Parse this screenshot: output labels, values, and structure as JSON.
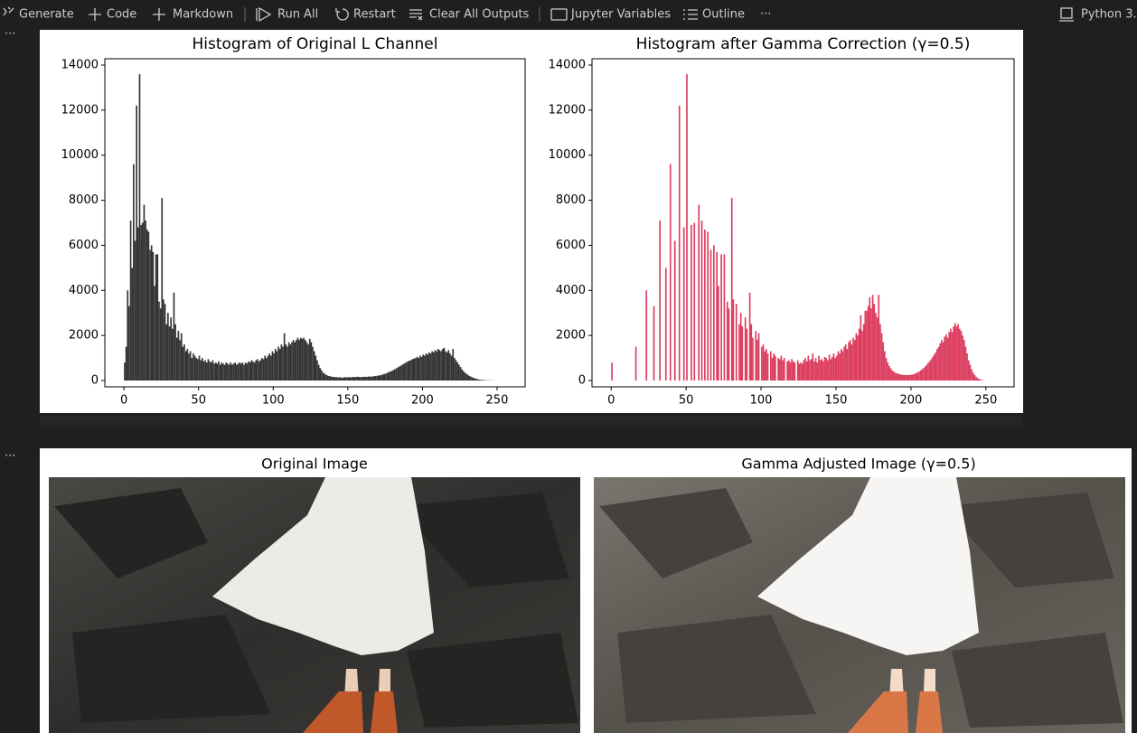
{
  "toolbar": {
    "items": [
      "Generate",
      "Code",
      "Markdown",
      "Run All",
      "Restart",
      "Clear All Outputs",
      "Jupyter Variables",
      "Outline",
      "···"
    ],
    "kernel": "Python 3."
  },
  "cells": [
    "···",
    "···"
  ],
  "chart_data": [
    {
      "type": "histogram",
      "title": "Histogram of Original L Channel",
      "color": "#333333",
      "bins": [
        0,
        1,
        2,
        3,
        4,
        5,
        6,
        7,
        8,
        9,
        10,
        11,
        12,
        13,
        14,
        15,
        16,
        17,
        18,
        19,
        20,
        21,
        22,
        23,
        24,
        25,
        26,
        27,
        28,
        29,
        30,
        31,
        32,
        33,
        34,
        35,
        36,
        37,
        38,
        39,
        40,
        41,
        42,
        43,
        44,
        45,
        46,
        47,
        48,
        49,
        50,
        51,
        52,
        53,
        54,
        55,
        56,
        57,
        58,
        59,
        60,
        61,
        62,
        63,
        64,
        65,
        66,
        67,
        68,
        69,
        70,
        71,
        72,
        73,
        74,
        75,
        76,
        77,
        78,
        79,
        80,
        81,
        82,
        83,
        84,
        85,
        86,
        87,
        88,
        89,
        90,
        91,
        92,
        93,
        94,
        95,
        96,
        97,
        98,
        99,
        100,
        101,
        102,
        103,
        104,
        105,
        106,
        107,
        108,
        109,
        110,
        111,
        112,
        113,
        114,
        115,
        116,
        117,
        118,
        119,
        120,
        121,
        122,
        123,
        124,
        125,
        126,
        127,
        128,
        129,
        130,
        131,
        132,
        133,
        134,
        135,
        136,
        137,
        138,
        139,
        140,
        141,
        142,
        143,
        144,
        145,
        146,
        147,
        148,
        149,
        150,
        151,
        152,
        153,
        154,
        155,
        156,
        157,
        158,
        159,
        160,
        161,
        162,
        163,
        164,
        165,
        166,
        167,
        168,
        169,
        170,
        171,
        172,
        173,
        174,
        175,
        176,
        177,
        178,
        179,
        180,
        181,
        182,
        183,
        184,
        185,
        186,
        187,
        188,
        189,
        190,
        191,
        192,
        193,
        194,
        195,
        196,
        197,
        198,
        199,
        200,
        201,
        202,
        203,
        204,
        205,
        206,
        207,
        208,
        209,
        210,
        211,
        212,
        213,
        214,
        215,
        216,
        217,
        218,
        219,
        220,
        221,
        222,
        223,
        224,
        225,
        226,
        227,
        228,
        229,
        230,
        231,
        232,
        233,
        234,
        235,
        236,
        237,
        238,
        239,
        240,
        241,
        242,
        243,
        244,
        245,
        246,
        247,
        248,
        249,
        250,
        251,
        252,
        253,
        254,
        255,
        256
      ],
      "values": [
        800,
        1500,
        4000,
        3300,
        7100,
        5000,
        9600,
        6200,
        12200,
        6800,
        13600,
        6900,
        7000,
        7800,
        7100,
        6700,
        6600,
        5800,
        6000,
        5700,
        4200,
        5600,
        5600,
        3500,
        3200,
        8100,
        3600,
        3400,
        2500,
        3000,
        2400,
        2800,
        2300,
        3900,
        2500,
        1900,
        2200,
        1800,
        2100,
        1500,
        1600,
        1300,
        1400,
        1200,
        1300,
        1000,
        1200,
        1100,
        1000,
        950,
        1100,
        900,
        1000,
        850,
        900,
        800,
        950,
        850,
        800,
        900,
        750,
        800,
        750,
        850,
        700,
        800,
        750,
        700,
        800,
        750,
        700,
        800,
        700,
        750,
        800,
        700,
        750,
        800,
        750,
        800,
        700,
        800,
        750,
        850,
        800,
        900,
        850,
        800,
        900,
        950,
        850,
        900,
        1000,
        950,
        1100,
        1000,
        1100,
        1200,
        1100,
        1300,
        1200,
        1400,
        1300,
        1500,
        1400,
        1600,
        1500,
        2100,
        1600,
        1500,
        1700,
        1600,
        1700,
        1800,
        1700,
        1800,
        1900,
        1800,
        1900,
        1850,
        1900,
        1800,
        1700,
        1600,
        1850,
        1700,
        1500,
        1300,
        1100,
        900,
        700,
        550,
        450,
        350,
        300,
        250,
        220,
        200,
        180,
        170,
        160,
        150,
        150,
        140,
        140,
        140,
        130,
        140,
        150,
        140,
        150,
        140,
        150,
        160,
        150,
        160,
        170,
        160,
        150,
        160,
        160,
        170,
        160,
        170,
        180,
        170,
        180,
        190,
        200,
        210,
        220,
        230,
        250,
        270,
        290,
        310,
        340,
        370,
        400,
        430,
        460,
        500,
        540,
        580,
        620,
        660,
        700,
        740,
        780,
        820,
        860,
        880,
        920,
        950,
        980,
        1000,
        1050,
        1000,
        1100,
        1050,
        1150,
        1100,
        1200,
        1150,
        1250,
        1200,
        1300,
        1250,
        1350,
        1300,
        1400,
        1350,
        1300,
        1400,
        1450,
        1300,
        1250,
        1350,
        1200,
        1100,
        1400,
        1000,
        900,
        800,
        700,
        600,
        500,
        420,
        350,
        300,
        250,
        200,
        170,
        140,
        110,
        90,
        70,
        50,
        40,
        30,
        25,
        20,
        15,
        10,
        8,
        6,
        4,
        3,
        2,
        1,
        0,
        0,
        0,
        0,
        0,
        0
      ],
      "xlim": [
        -12.8,
        268.8
      ],
      "xticks": [
        0,
        50,
        100,
        150,
        200,
        250
      ],
      "ylim": [
        -280,
        14280
      ],
      "yticks": [
        0,
        2000,
        4000,
        6000,
        8000,
        10000,
        12000,
        14000
      ]
    },
    {
      "type": "histogram",
      "title": "Histogram after Gamma Correction (γ=0.5)",
      "color": "#dc3d5e",
      "bins": [
        0,
        1,
        2,
        3,
        4,
        5,
        6,
        7,
        8,
        9,
        10,
        11,
        12,
        13,
        14,
        15,
        16,
        17,
        18,
        19,
        20,
        21,
        22,
        23,
        24,
        25,
        26,
        27,
        28,
        29,
        30,
        31,
        32,
        33,
        34,
        35,
        36,
        37,
        38,
        39,
        40,
        41,
        42,
        43,
        44,
        45,
        46,
        47,
        48,
        49,
        50,
        51,
        52,
        53,
        54,
        55,
        56,
        57,
        58,
        59,
        60,
        61,
        62,
        63,
        64,
        65,
        66,
        67,
        68,
        69,
        70,
        71,
        72,
        73,
        74,
        75,
        76,
        77,
        78,
        79,
        80,
        81,
        82,
        83,
        84,
        85,
        86,
        87,
        88,
        89,
        90,
        91,
        92,
        93,
        94,
        95,
        96,
        97,
        98,
        99,
        100,
        101,
        102,
        103,
        104,
        105,
        106,
        107,
        108,
        109,
        110,
        111,
        112,
        113,
        114,
        115,
        116,
        117,
        118,
        119,
        120,
        121,
        122,
        123,
        124,
        125,
        126,
        127,
        128,
        129,
        130,
        131,
        132,
        133,
        134,
        135,
        136,
        137,
        138,
        139,
        140,
        141,
        142,
        143,
        144,
        145,
        146,
        147,
        148,
        149,
        150,
        151,
        152,
        153,
        154,
        155,
        156,
        157,
        158,
        159,
        160,
        161,
        162,
        163,
        164,
        165,
        166,
        167,
        168,
        169,
        170,
        171,
        172,
        173,
        174,
        175,
        176,
        177,
        178,
        179,
        180,
        181,
        182,
        183,
        184,
        185,
        186,
        187,
        188,
        189,
        190,
        191,
        192,
        193,
        194,
        195,
        196,
        197,
        198,
        199,
        200,
        201,
        202,
        203,
        204,
        205,
        206,
        207,
        208,
        209,
        210,
        211,
        212,
        213,
        214,
        215,
        216,
        217,
        218,
        219,
        220,
        221,
        222,
        223,
        224,
        225,
        226,
        227,
        228,
        229,
        230,
        231,
        232,
        233,
        234,
        235,
        236,
        237,
        238,
        239,
        240,
        241,
        242,
        243,
        244,
        245,
        246,
        247,
        248,
        249,
        250,
        251,
        252,
        253,
        254,
        255,
        256
      ],
      "values": [
        800,
        0,
        0,
        0,
        0,
        0,
        0,
        0,
        0,
        0,
        0,
        0,
        0,
        0,
        0,
        0,
        1500,
        0,
        0,
        0,
        0,
        0,
        0,
        4000,
        0,
        0,
        0,
        0,
        3300,
        0,
        0,
        0,
        7100,
        0,
        0,
        0,
        5000,
        0,
        0,
        9600,
        0,
        0,
        6200,
        0,
        0,
        12200,
        0,
        0,
        6800,
        0,
        13600,
        0,
        0,
        6900,
        0,
        7000,
        0,
        0,
        7800,
        0,
        7100,
        0,
        6700,
        0,
        6600,
        0,
        5800,
        0,
        6000,
        0,
        5700,
        4200,
        0,
        5600,
        0,
        5600,
        0,
        3500,
        3200,
        0,
        8100,
        3600,
        0,
        3400,
        0,
        2500,
        3000,
        2400,
        0,
        2800,
        2300,
        0,
        3900,
        2500,
        1900,
        0,
        2200,
        1800,
        2100,
        0,
        1500,
        1600,
        1300,
        1400,
        1200,
        0,
        1300,
        1000,
        1200,
        1100,
        0,
        1000,
        950,
        1100,
        900,
        1000,
        0,
        850,
        900,
        800,
        950,
        850,
        800,
        0,
        900,
        750,
        800,
        750,
        900,
        1000,
        850,
        1100,
        900,
        950,
        1200,
        850,
        1000,
        800,
        1100,
        900,
        950,
        850,
        1050,
        1000,
        900,
        1150,
        950,
        1050,
        1200,
        1000,
        1100,
        1300,
        1200,
        1400,
        1300,
        1500,
        1600,
        1400,
        1700,
        1800,
        1600,
        1900,
        1800,
        2100,
        2000,
        2300,
        2900,
        2200,
        2500,
        3100,
        3100,
        3300,
        3700,
        3200,
        3800,
        3400,
        3000,
        2800,
        3800,
        2500,
        2100,
        1700,
        1300,
        1000,
        800,
        650,
        550,
        450,
        400,
        350,
        320,
        300,
        280,
        260,
        250,
        250,
        240,
        250,
        240,
        250,
        260,
        270,
        300,
        330,
        360,
        400,
        450,
        500,
        560,
        620,
        700,
        780,
        860,
        950,
        1050,
        1150,
        1250,
        1400,
        1500,
        1650,
        1800,
        1700,
        1950,
        2050,
        1900,
        2150,
        2300,
        2150,
        2400,
        2550,
        2400,
        2500,
        2300,
        2200,
        2000,
        1800,
        1500,
        1200,
        900,
        700,
        500,
        350,
        250,
        170,
        110,
        70,
        40,
        20,
        10,
        5,
        0,
        0,
        0,
        0,
        0,
        0
      ],
      "xlim": [
        -12.8,
        268.8
      ],
      "xticks": [
        0,
        50,
        100,
        150,
        200,
        250
      ],
      "ylim": [
        -280,
        14280
      ],
      "yticks": [
        0,
        2000,
        4000,
        6000,
        8000,
        10000,
        12000,
        14000
      ]
    }
  ],
  "images": [
    {
      "title": "Original Image"
    },
    {
      "title": "Gamma Adjusted Image (γ=0.5)"
    }
  ]
}
